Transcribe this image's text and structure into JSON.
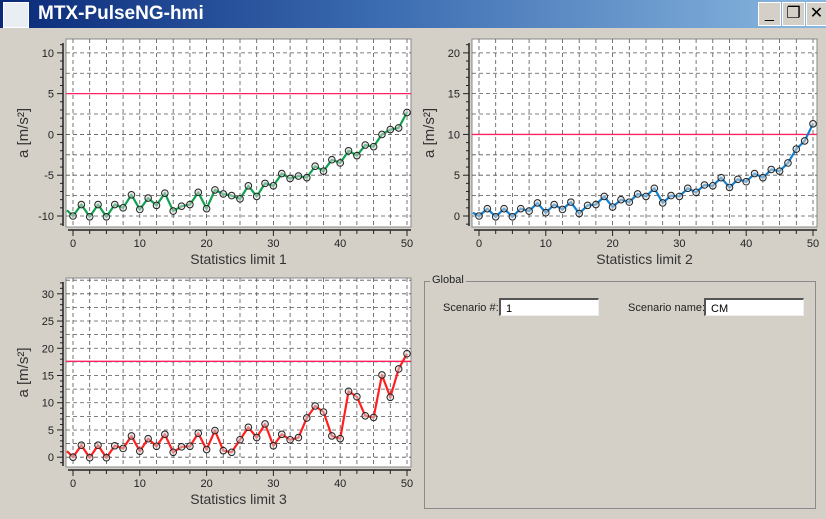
{
  "window": {
    "title": "MTX-PulseNG-hmi",
    "icon_text": "pulseNG",
    "minimize": "_",
    "restore": "❐",
    "close": "✕"
  },
  "colors": {
    "limit": "#ff2060",
    "series1": "#10a050",
    "series2": "#1080d0",
    "series3": "#ff2020"
  },
  "chart_data": [
    {
      "type": "line",
      "title": "",
      "xlabel": "Statistics limit 1",
      "ylabel": "a [m/s²]",
      "xlim": [
        -1,
        50.5
      ],
      "ylim": [
        -11.35,
        11.7
      ],
      "xticks": [
        0,
        10,
        20,
        30,
        40,
        50
      ],
      "yticks": [
        -10,
        -5,
        0,
        5,
        10
      ],
      "grid": true,
      "limit": 5,
      "start_value": -9.3,
      "color": "#10a050",
      "x_step": 1.25,
      "values": [
        -10,
        -8.6,
        -10.1,
        -8.6,
        -10.1,
        -8.6,
        -9.0,
        -7.4,
        -9.2,
        -7.8,
        -8.7,
        -7.2,
        -9.4,
        -8.8,
        -8.6,
        -7.1,
        -9.1,
        -6.8,
        -7.3,
        -7.5,
        -7.9,
        -6.3,
        -7.6,
        -6.0,
        -6.3,
        -4.8,
        -5.4,
        -5.1,
        -5.3,
        -3.9,
        -4.5,
        -3.1,
        -3.5,
        -2.0,
        -2.6,
        -1.3,
        -1.5,
        0.0,
        0.6,
        0.8,
        2.7
      ]
    },
    {
      "type": "line",
      "title": "",
      "xlabel": "Statistics limit 2",
      "ylabel": "a [m/s²]",
      "xlim": [
        -1,
        50.5
      ],
      "ylim": [
        -1.35,
        21.7
      ],
      "xticks": [
        0,
        10,
        20,
        30,
        40,
        50
      ],
      "yticks": [
        0,
        5,
        10,
        15,
        20
      ],
      "grid": true,
      "limit": 10,
      "start_value": 0.4,
      "color": "#1080d0",
      "x_step": 1.25,
      "values": [
        0,
        0.9,
        -0.1,
        0.9,
        -0.1,
        0.9,
        0.6,
        1.6,
        0.4,
        1.4,
        0.8,
        1.7,
        0.3,
        1.3,
        1.4,
        2.4,
        1.1,
        2.0,
        1.7,
        2.7,
        2.4,
        3.4,
        1.6,
        2.5,
        2.4,
        3.4,
        2.9,
        3.8,
        3.7,
        4.7,
        3.5,
        4.5,
        4.2,
        5.2,
        4.7,
        5.7,
        5.5,
        6.5,
        8.2,
        9.2,
        11.3
      ]
    },
    {
      "type": "line",
      "title": "",
      "xlabel": "Statistics limit 3",
      "ylabel": "a [m/s²]",
      "xlim": [
        -1,
        50.5
      ],
      "ylim": [
        -1.8,
        32.9
      ],
      "xticks": [
        0,
        10,
        20,
        30,
        40,
        50
      ],
      "yticks": [
        0,
        5,
        10,
        15,
        20,
        25,
        30
      ],
      "grid": true,
      "limit": 17.6,
      "start_value": 1.1,
      "color": "#ff2020",
      "x_step": 1.25,
      "values": [
        0,
        2.2,
        -0.1,
        2.2,
        -0.1,
        2.1,
        1.6,
        3.9,
        1.1,
        3.4,
        2.0,
        4.2,
        0.9,
        1.9,
        2.0,
        4.4,
        1.4,
        4.9,
        1.2,
        0.9,
        3.2,
        5.5,
        3.6,
        6.1,
        2.1,
        4.2,
        3.2,
        3.6,
        7.2,
        9.4,
        8.3,
        3.9,
        3.4,
        12.1,
        11.1,
        7.6,
        7.3,
        15.1,
        11.0,
        16.2,
        19.0
      ]
    }
  ],
  "global": {
    "legend": "Global",
    "scenario_num_label": "Scenario #:",
    "scenario_num": "1",
    "scenario_name_label": "Scenario name:",
    "scenario_name": "CM"
  }
}
